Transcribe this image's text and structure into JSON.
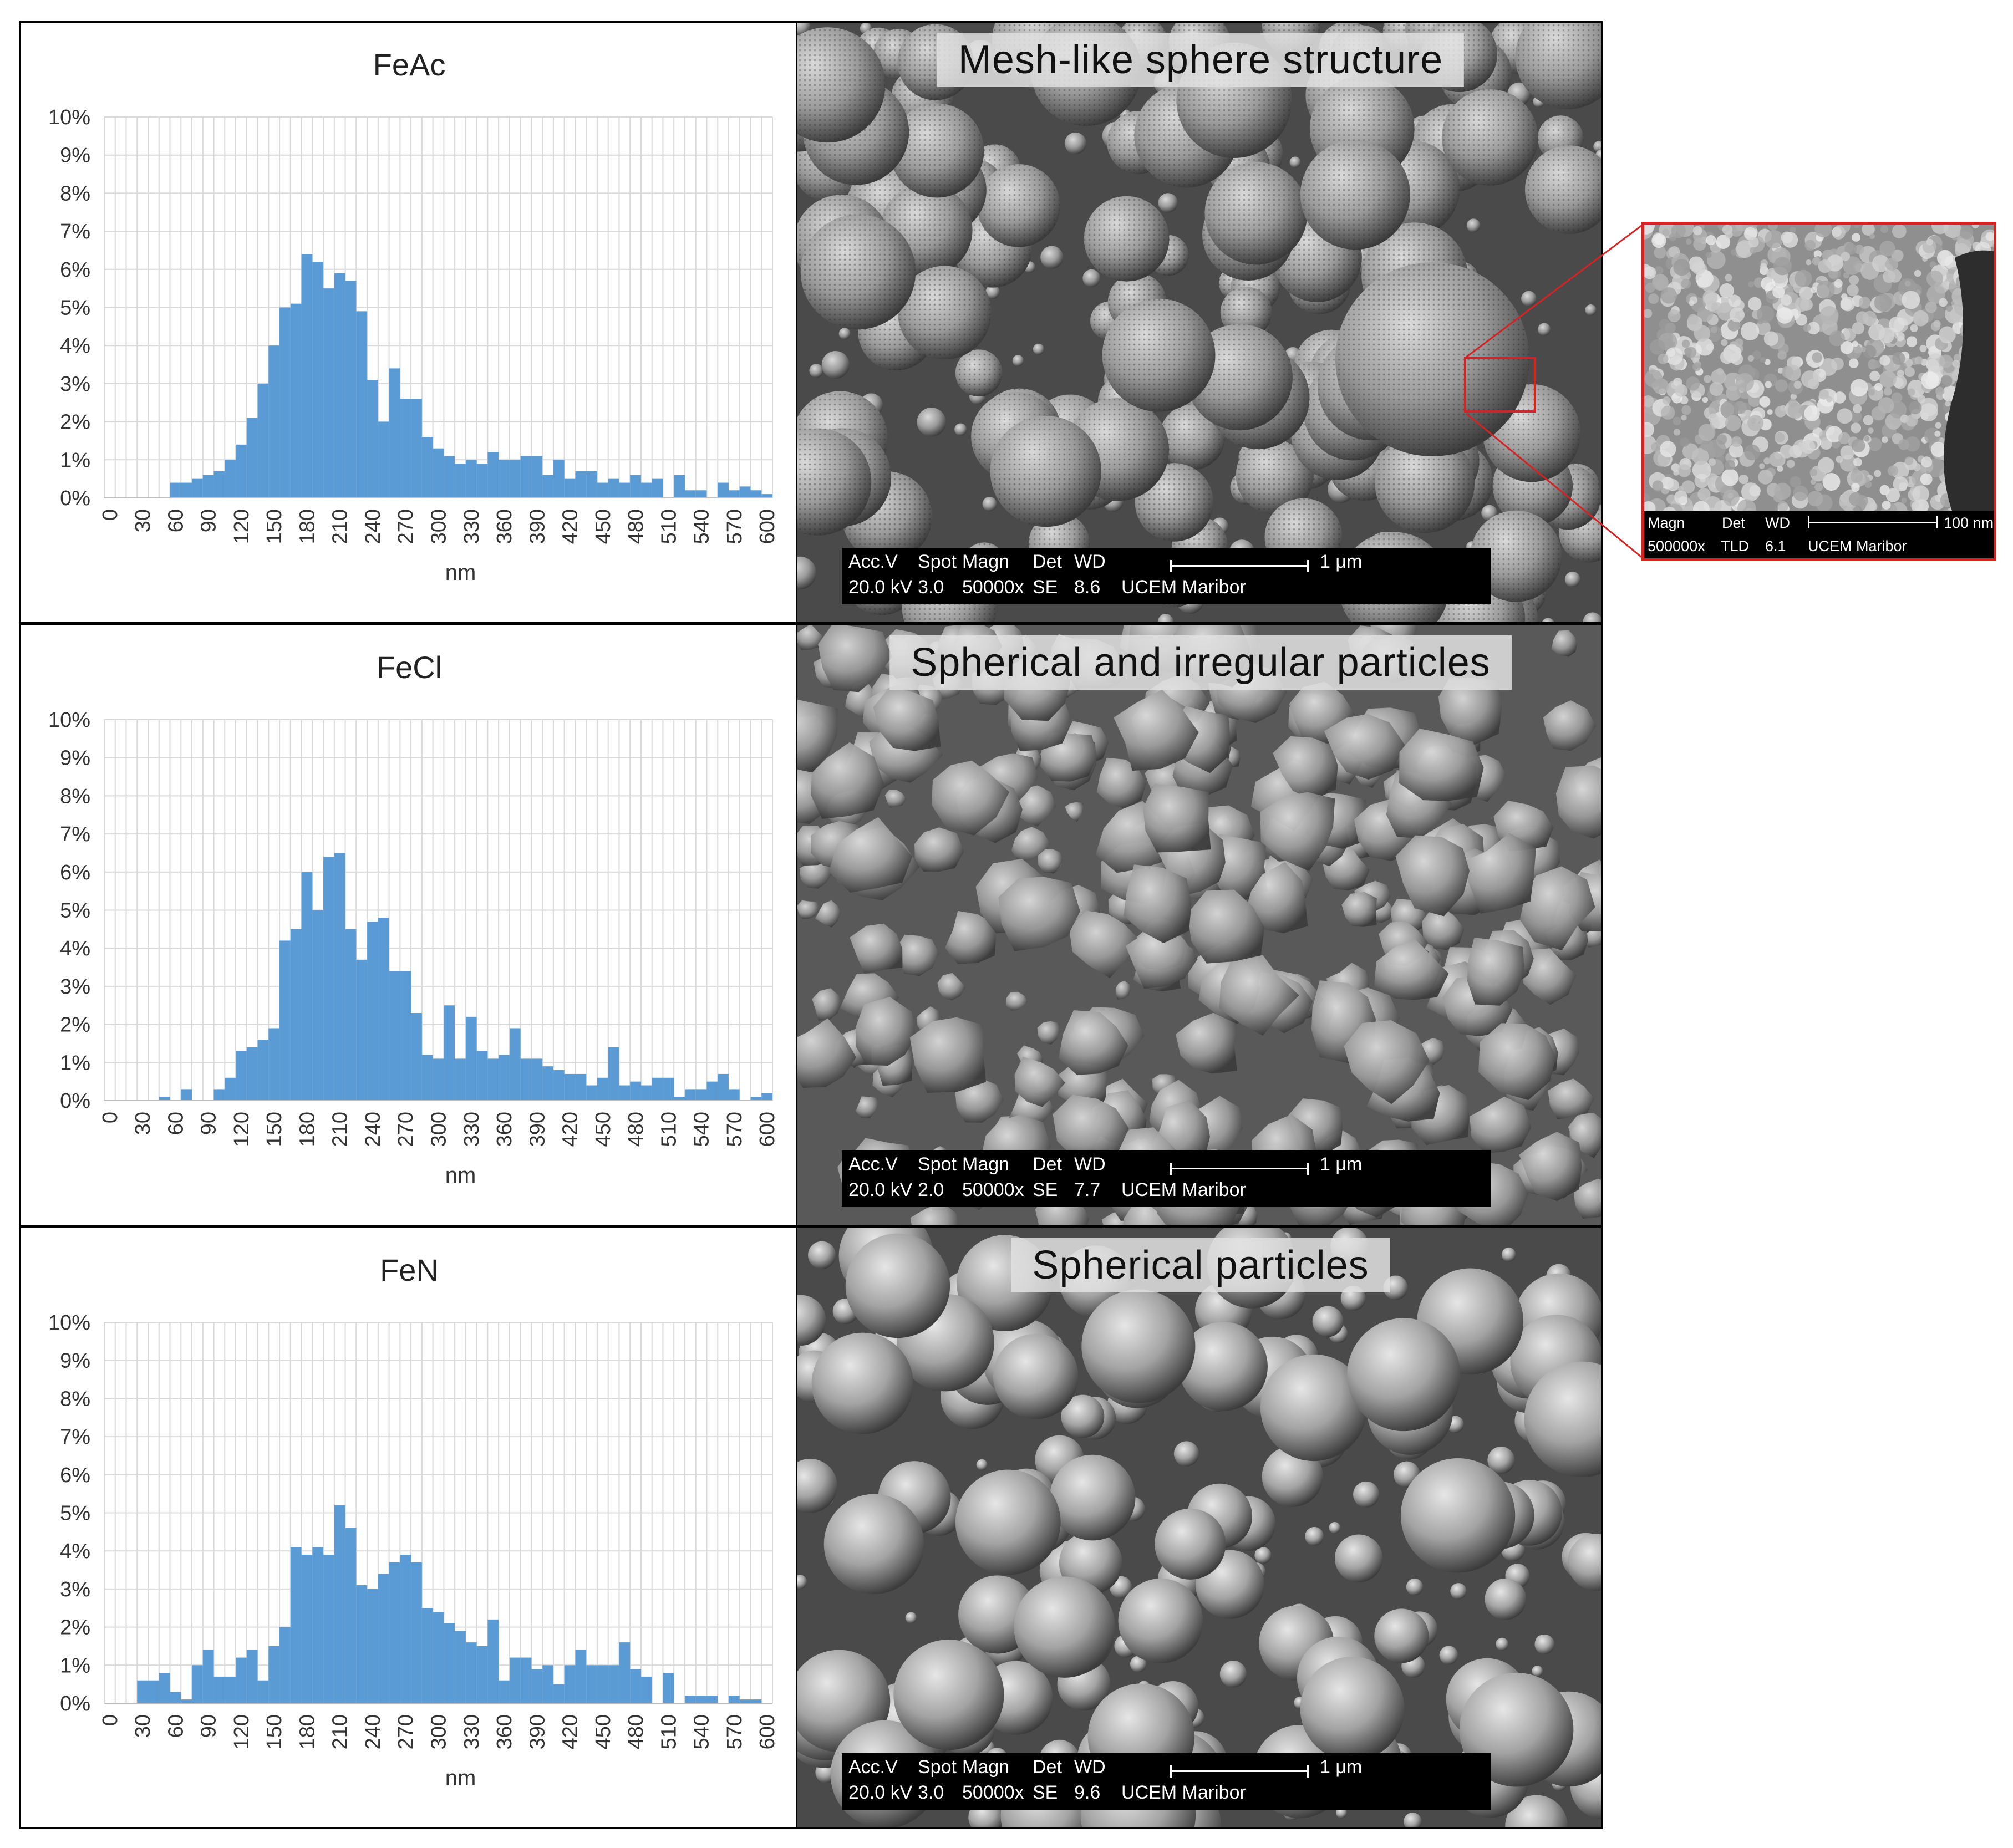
{
  "chart_data": [
    {
      "type": "bar",
      "title": "FeAc",
      "xlabel": "nm",
      "ylabel": "",
      "ylim": [
        0,
        0.1
      ],
      "yticks": [
        "0%",
        "1%",
        "2%",
        "3%",
        "4%",
        "5%",
        "6%",
        "7%",
        "8%",
        "9%",
        "10%"
      ],
      "xticks": [
        "0",
        "30",
        "60",
        "90",
        "120",
        "150",
        "180",
        "210",
        "240",
        "270",
        "300",
        "330",
        "360",
        "390",
        "420",
        "450",
        "480",
        "510",
        "540",
        "570",
        "600"
      ],
      "bin_width": 10,
      "x": [
        0,
        10,
        20,
        30,
        40,
        50,
        60,
        70,
        80,
        90,
        100,
        110,
        120,
        130,
        140,
        150,
        160,
        170,
        180,
        190,
        200,
        210,
        220,
        230,
        240,
        250,
        260,
        270,
        280,
        290,
        300,
        310,
        320,
        330,
        340,
        350,
        360,
        370,
        380,
        390,
        400,
        410,
        420,
        430,
        440,
        450,
        460,
        470,
        480,
        490,
        500,
        510,
        520,
        530,
        540,
        550,
        560,
        570,
        580,
        590,
        600
      ],
      "values": [
        0,
        0,
        0,
        0,
        0,
        0,
        0.004,
        0.004,
        0.005,
        0.006,
        0.007,
        0.01,
        0.014,
        0.021,
        0.03,
        0.04,
        0.05,
        0.051,
        0.064,
        0.062,
        0.055,
        0.059,
        0.057,
        0.049,
        0.031,
        0.02,
        0.034,
        0.026,
        0.026,
        0.016,
        0.013,
        0.011,
        0.009,
        0.01,
        0.009,
        0.012,
        0.01,
        0.01,
        0.011,
        0.011,
        0.006,
        0.01,
        0.005,
        0.007,
        0.007,
        0.004,
        0.005,
        0.004,
        0.006,
        0.004,
        0.005,
        0,
        0.006,
        0.002,
        0.002,
        0,
        0.004,
        0.002,
        0.003,
        0.002,
        0.001
      ],
      "grid": true,
      "color": "#5b9bd5"
    },
    {
      "type": "bar",
      "title": "FeCl",
      "xlabel": "nm",
      "ylabel": "",
      "ylim": [
        0,
        0.1
      ],
      "yticks": [
        "0%",
        "1%",
        "2%",
        "3%",
        "4%",
        "5%",
        "6%",
        "7%",
        "8%",
        "9%",
        "10%"
      ],
      "xticks": [
        "0",
        "30",
        "60",
        "90",
        "120",
        "150",
        "180",
        "210",
        "240",
        "270",
        "300",
        "330",
        "360",
        "390",
        "420",
        "450",
        "480",
        "510",
        "540",
        "570",
        "600"
      ],
      "bin_width": 10,
      "x": [
        0,
        10,
        20,
        30,
        40,
        50,
        60,
        70,
        80,
        90,
        100,
        110,
        120,
        130,
        140,
        150,
        160,
        170,
        180,
        190,
        200,
        210,
        220,
        230,
        240,
        250,
        260,
        270,
        280,
        290,
        300,
        310,
        320,
        330,
        340,
        350,
        360,
        370,
        380,
        390,
        400,
        410,
        420,
        430,
        440,
        450,
        460,
        470,
        480,
        490,
        500,
        510,
        520,
        530,
        540,
        550,
        560,
        570,
        580,
        590,
        600
      ],
      "values": [
        0,
        0,
        0,
        0,
        0,
        0.001,
        0,
        0.003,
        0,
        0,
        0.003,
        0.006,
        0.013,
        0.014,
        0.016,
        0.019,
        0.042,
        0.045,
        0.06,
        0.05,
        0.064,
        0.065,
        0.045,
        0.037,
        0.047,
        0.048,
        0.034,
        0.034,
        0.023,
        0.012,
        0.011,
        0.025,
        0.011,
        0.022,
        0.013,
        0.011,
        0.012,
        0.019,
        0.011,
        0.011,
        0.009,
        0.008,
        0.007,
        0.007,
        0.004,
        0.006,
        0.014,
        0.004,
        0.005,
        0.004,
        0.006,
        0.006,
        0.001,
        0.003,
        0.003,
        0.005,
        0.007,
        0.003,
        0,
        0.001,
        0.002
      ],
      "grid": true,
      "color": "#5b9bd5"
    },
    {
      "type": "bar",
      "title": "FeN",
      "xlabel": "nm",
      "ylabel": "",
      "ylim": [
        0,
        0.1
      ],
      "yticks": [
        "0%",
        "1%",
        "2%",
        "3%",
        "4%",
        "5%",
        "6%",
        "7%",
        "8%",
        "9%",
        "10%"
      ],
      "xticks": [
        "0",
        "30",
        "60",
        "90",
        "120",
        "150",
        "180",
        "210",
        "240",
        "270",
        "300",
        "330",
        "360",
        "390",
        "420",
        "450",
        "480",
        "510",
        "540",
        "570",
        "600"
      ],
      "bin_width": 10,
      "x": [
        0,
        10,
        20,
        30,
        40,
        50,
        60,
        70,
        80,
        90,
        100,
        110,
        120,
        130,
        140,
        150,
        160,
        170,
        180,
        190,
        200,
        210,
        220,
        230,
        240,
        250,
        260,
        270,
        280,
        290,
        300,
        310,
        320,
        330,
        340,
        350,
        360,
        370,
        380,
        390,
        400,
        410,
        420,
        430,
        440,
        450,
        460,
        470,
        480,
        490,
        500,
        510,
        520,
        530,
        540,
        550,
        560,
        570,
        580,
        590,
        600
      ],
      "values": [
        0,
        0,
        0,
        0.006,
        0.006,
        0.008,
        0.003,
        0.001,
        0.01,
        0.014,
        0.007,
        0.007,
        0.012,
        0.014,
        0.006,
        0.015,
        0.02,
        0.041,
        0.039,
        0.041,
        0.039,
        0.052,
        0.046,
        0.031,
        0.03,
        0.034,
        0.037,
        0.039,
        0.037,
        0.025,
        0.024,
        0.021,
        0.019,
        0.016,
        0.015,
        0.022,
        0.006,
        0.012,
        0.012,
        0.009,
        0.01,
        0.005,
        0.01,
        0.014,
        0.01,
        0.01,
        0.01,
        0.016,
        0.009,
        0.007,
        0,
        0.008,
        0,
        0.002,
        0.002,
        0.002,
        0,
        0.002,
        0.001,
        0.001,
        0
      ],
      "grid": true,
      "color": "#5b9bd5"
    }
  ],
  "sem_panels": [
    {
      "caption": "Mesh-like sphere structure",
      "databar": {
        "h_acc": "Acc.V",
        "h_spot": "Spot",
        "h_magn": "Magn",
        "h_det": "Det",
        "h_wd": "WD",
        "v_acc": "20.0 kV",
        "v_spot": "3.0",
        "v_magn": "50000x",
        "v_det": "SE",
        "v_wd": "8.6",
        "scale": "1 μm",
        "lab": "UCEM Maribor"
      }
    },
    {
      "caption": "Spherical and irregular particles",
      "databar": {
        "h_acc": "Acc.V",
        "h_spot": "Spot",
        "h_magn": "Magn",
        "h_det": "Det",
        "h_wd": "WD",
        "v_acc": "20.0 kV",
        "v_spot": "2.0",
        "v_magn": "50000x",
        "v_det": "SE",
        "v_wd": "7.7",
        "scale": "1 μm",
        "lab": "UCEM Maribor"
      }
    },
    {
      "caption": "Spherical particles",
      "databar": {
        "h_acc": "Acc.V",
        "h_spot": "Spot",
        "h_magn": "Magn",
        "h_det": "Det",
        "h_wd": "WD",
        "v_acc": "20.0 kV",
        "v_spot": "3.0",
        "v_magn": "50000x",
        "v_det": "SE",
        "v_wd": "9.6",
        "scale": "1 μm",
        "lab": "UCEM Maribor"
      }
    }
  ],
  "zoom_inset": {
    "databar": {
      "h_magn": "Magn",
      "h_det": "Det",
      "h_wd": "WD",
      "v_magn": "500000x",
      "v_det": "TLD",
      "v_wd": "6.1",
      "scale": "100 nm",
      "lab": "UCEM Maribor"
    }
  },
  "colors": {
    "bar": "#5b9bd5",
    "grid": "#d9d9d9",
    "highlight": "#d42323"
  }
}
